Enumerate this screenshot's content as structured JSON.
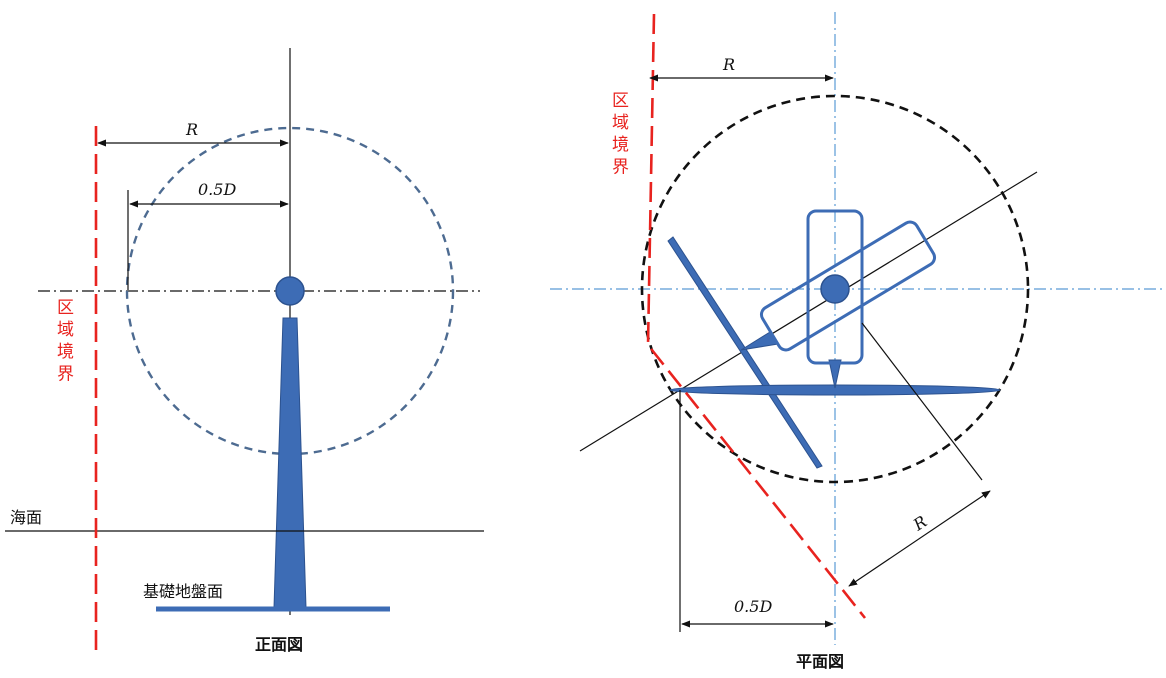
{
  "front_view": {
    "title": "正面図",
    "boundary_label": "区域境界",
    "sea_surface_label": "海面",
    "foundation_label": "基礎地盤面",
    "radius_label": "R",
    "half_diameter_label": "0.5D"
  },
  "plan_view": {
    "title": "平面図",
    "boundary_label": "区域境界",
    "radius_top_label": "R",
    "radius_diag_label": "R",
    "half_diameter_label": "0.5D"
  },
  "colors": {
    "boundary": "#e8231f",
    "structure": "#3d6cb5",
    "structure_stroke": "#2c528f",
    "circle_front": "#4d6b91",
    "circle_plan": "#111111",
    "centerline_plan": "#5b9bd5",
    "line": "#111111"
  }
}
